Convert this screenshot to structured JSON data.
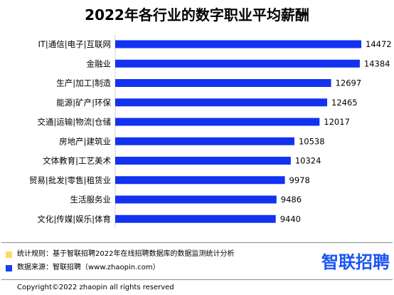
{
  "chart_data": {
    "type": "bar",
    "orientation": "horizontal",
    "title": "2022年各行业的数字职业平均薪酬",
    "categories": [
      "IT|通信|电子|互联网",
      "金融业",
      "生产|加工|制造",
      "能源|矿产|环保",
      "交通|运输|物流|仓储",
      "房地产|建筑业",
      "文体教育|工艺美术",
      "贸易|批发|零售|租赁业",
      "生活服务业",
      "文化|传媒|娱乐|体育"
    ],
    "values": [
      14472,
      14384,
      12697,
      12465,
      12017,
      10538,
      10324,
      9978,
      9486,
      9440
    ],
    "xlabel": "",
    "ylabel": "",
    "xlim": [
      0,
      14700
    ],
    "grid": false,
    "bar_color": "#1232f0"
  },
  "notes": [
    {
      "text": "统计规则：基于智联招聘2022年在线招聘数据库的数据监测统计分析",
      "color": "#fdd96b"
    },
    {
      "text": "数据来源：智联招聘（www.zhaopin.com）",
      "color": "#1a3ef2"
    }
  ],
  "logo_text": "智联招聘",
  "copyright": "Copyright©2022 zhaopin all rights reserved"
}
